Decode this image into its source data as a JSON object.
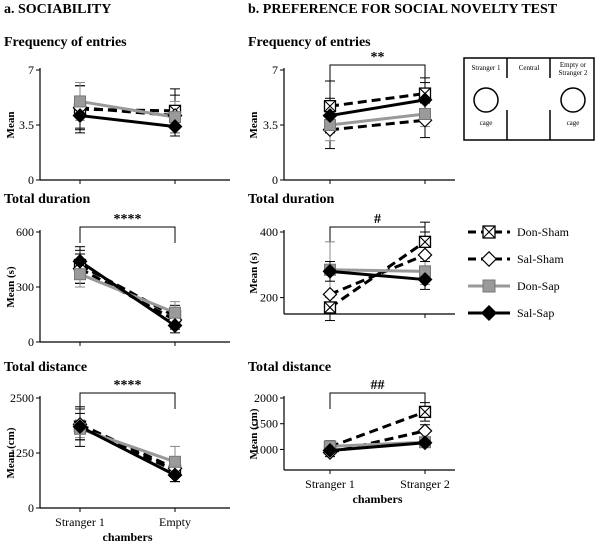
{
  "figure": {
    "section_a": "a. SOCIABILITY",
    "section_b": "b. PREFERENCE FOR SOCIAL NOVELTY TEST"
  },
  "legend": [
    {
      "name": "Don-Sham",
      "color": "#000000",
      "dash": "dashed",
      "marker": "boxx"
    },
    {
      "name": "Sal-Sham",
      "color": "#000000",
      "dash": "dashed",
      "marker": "diamond-open"
    },
    {
      "name": "Don-Sap",
      "color": "#999999",
      "dash": "solid",
      "marker": "square-gray"
    },
    {
      "name": "Sal-Sap",
      "color": "#000000",
      "dash": "solid",
      "marker": "diamond-filled"
    }
  ],
  "diagram": {
    "left": "Stranger 1",
    "middle": "Central",
    "right_line1": "Empty or",
    "right_line2": "Stranger 2",
    "cage_left": "cage",
    "cage_right": "cage"
  },
  "chart_data": [
    {
      "id": "a1",
      "type": "line",
      "title": "Frequency of entries",
      "ylabel": "Mean",
      "xlabel": "",
      "categories": [
        "",
        ""
      ],
      "ylim": [
        0,
        7
      ],
      "yticks": [
        "0",
        "3.5",
        "7"
      ],
      "series": [
        {
          "name": "Don-Sham",
          "values": [
            4.5,
            4.4
          ],
          "err": [
            1.5,
            1.4
          ]
        },
        {
          "name": "Sal-Sham",
          "values": [
            4.6,
            4.1
          ],
          "err": [
            1.4,
            1.3
          ]
        },
        {
          "name": "Don-Sap",
          "values": [
            5.0,
            4.0
          ],
          "err": [
            1.2,
            1.0
          ]
        },
        {
          "name": "Sal-Sap",
          "values": [
            4.1,
            3.4
          ],
          "err": [
            0.8,
            0.6
          ]
        }
      ],
      "significance": null
    },
    {
      "id": "a2",
      "type": "line",
      "title": "Total duration",
      "ylabel": "Mean (s)",
      "xlabel": "",
      "categories": [
        "",
        ""
      ],
      "ylim": [
        0,
        600
      ],
      "yticks": [
        "0",
        "300",
        "600"
      ],
      "series": [
        {
          "name": "Don-Sham",
          "values": [
            420,
            140
          ],
          "err": [
            100,
            60
          ]
        },
        {
          "name": "Sal-Sham",
          "values": [
            400,
            120
          ],
          "err": [
            80,
            50
          ]
        },
        {
          "name": "Don-Sap",
          "values": [
            370,
            160
          ],
          "err": [
            70,
            60
          ]
        },
        {
          "name": "Sal-Sap",
          "values": [
            440,
            90
          ],
          "err": [
            60,
            40
          ]
        }
      ],
      "significance": {
        "label": "****",
        "pair": [
          0,
          1
        ]
      }
    },
    {
      "id": "a3",
      "type": "line",
      "title": "Total distance",
      "ylabel": "Mean (cm)",
      "xlabel": "chambers",
      "categories": [
        "Stranger 1",
        "Empty"
      ],
      "ylim": [
        0,
        2500
      ],
      "yticks": [
        "0",
        "1250",
        "2500"
      ],
      "series": [
        {
          "name": "Don-Sham",
          "values": [
            1850,
            850
          ],
          "err": [
            450,
            250
          ]
        },
        {
          "name": "Sal-Sham",
          "values": [
            1900,
            900
          ],
          "err": [
            350,
            200
          ]
        },
        {
          "name": "Don-Sap",
          "values": [
            1800,
            1050
          ],
          "err": [
            200,
            350
          ]
        },
        {
          "name": "Sal-Sap",
          "values": [
            1850,
            750
          ],
          "err": [
            300,
            150
          ]
        }
      ],
      "significance": {
        "label": "****",
        "pair": [
          0,
          1
        ]
      }
    },
    {
      "id": "b1",
      "type": "line",
      "title": "Frequency of entries",
      "ylabel": "Mean",
      "xlabel": "",
      "categories": [
        "",
        ""
      ],
      "ylim": [
        0,
        7
      ],
      "yticks": [
        "0",
        "3.5",
        "7"
      ],
      "series": [
        {
          "name": "Don-Sham",
          "values": [
            4.7,
            5.5
          ],
          "err": [
            1.6,
            1.0
          ]
        },
        {
          "name": "Sal-Sham",
          "values": [
            3.2,
            3.8
          ],
          "err": [
            1.2,
            1.1
          ]
        },
        {
          "name": "Don-Sap",
          "values": [
            3.5,
            4.2
          ],
          "err": [
            1.0,
            0.8
          ]
        },
        {
          "name": "Sal-Sap",
          "values": [
            4.1,
            5.1
          ],
          "err": [
            1.1,
            1.1
          ]
        }
      ],
      "significance": {
        "label": "**",
        "pair": [
          0,
          1
        ]
      }
    },
    {
      "id": "b2",
      "type": "line",
      "title": "Total duration",
      "ylabel": "Mean (s)",
      "xlabel": "",
      "categories": [
        "",
        ""
      ],
      "ylim": [
        150,
        400
      ],
      "yticks": [
        "200",
        "400"
      ],
      "ytick_values": [
        200,
        400
      ],
      "series": [
        {
          "name": "Don-Sham",
          "values": [
            170,
            370
          ],
          "err": [
            40,
            60
          ]
        },
        {
          "name": "Sal-Sham",
          "values": [
            210,
            330
          ],
          "err": [
            60,
            70
          ]
        },
        {
          "name": "Don-Sap",
          "values": [
            285,
            280
          ],
          "err": [
            85,
            40
          ]
        },
        {
          "name": "Sal-Sap",
          "values": [
            280,
            255
          ],
          "err": [
            30,
            30
          ]
        }
      ],
      "significance": {
        "label": "#",
        "pair": [
          0,
          1
        ]
      }
    },
    {
      "id": "b3",
      "type": "line",
      "title": "Total distance",
      "ylabel": "Mean (cm)",
      "xlabel": "chambers",
      "categories": [
        "Stranger 1",
        "Stranger 2"
      ],
      "ylim": [
        600,
        2000
      ],
      "yticks": [
        "1000",
        "1500",
        "2000"
      ],
      "ytick_values": [
        1000,
        1500,
        2000
      ],
      "series": [
        {
          "name": "Don-Sham",
          "values": [
            1050,
            1730
          ],
          "err": [
            120,
            180
          ]
        },
        {
          "name": "Sal-Sham",
          "values": [
            940,
            1360
          ],
          "err": [
            80,
            120
          ]
        },
        {
          "name": "Don-Sap",
          "values": [
            1060,
            1140
          ],
          "err": [
            80,
            80
          ]
        },
        {
          "name": "Sal-Sap",
          "values": [
            980,
            1130
          ],
          "err": [
            60,
            60
          ]
        }
      ],
      "significance": {
        "label": "##",
        "pair": [
          0,
          1
        ]
      }
    }
  ]
}
